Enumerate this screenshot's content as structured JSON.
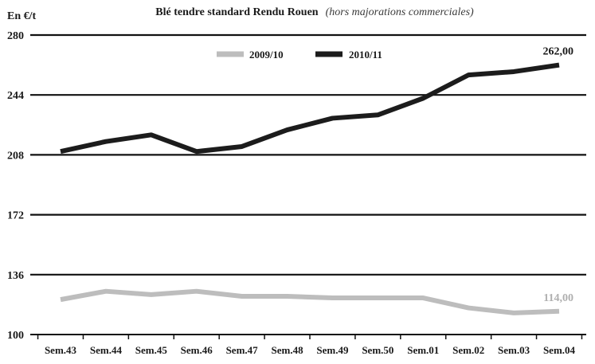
{
  "chart_data": {
    "type": "line",
    "title": "Blé tendre standard Rendu Rouen",
    "subtitle": "(hors majorations commerciales)",
    "ylabel": "En €/t",
    "xlabel": "",
    "categories": [
      "Sem.43",
      "Sem.44",
      "Sem.45",
      "Sem.46",
      "Sem.47",
      "Sem.48",
      "Sem.49",
      "Sem.50",
      "Sem.01",
      "Sem.02",
      "Sem.03",
      "Sem.04"
    ],
    "ylim": [
      100,
      280
    ],
    "yticks": [
      "280",
      "244",
      "208",
      "172",
      "136",
      "100"
    ],
    "grid": true,
    "legend_position": "top-center",
    "series": [
      {
        "name": "2009/10",
        "color": "#bdbdbd",
        "values": [
          121,
          126,
          124,
          126,
          123,
          123,
          122,
          122,
          122,
          116,
          113,
          114
        ],
        "end_label": "114,00"
      },
      {
        "name": "2010/11",
        "color": "#1c1c1c",
        "values": [
          210,
          216,
          220,
          210,
          213,
          223,
          230,
          232,
          242,
          256,
          258,
          262
        ],
        "end_label": "262,00"
      }
    ]
  }
}
